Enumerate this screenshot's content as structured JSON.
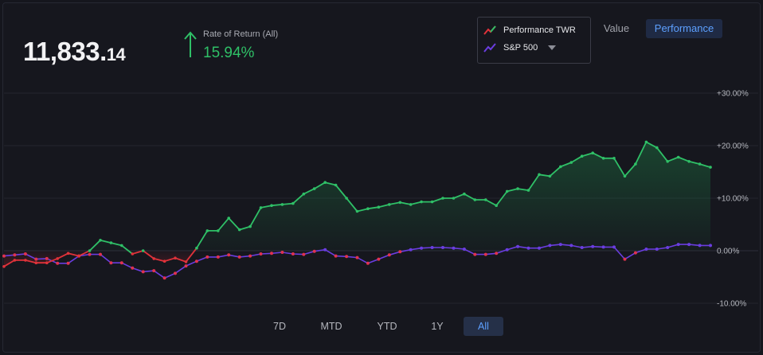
{
  "header": {
    "value_main": "11,833.",
    "value_cents": "14",
    "ror_label": "Rate of Return (All)",
    "ror_value": "15.94%"
  },
  "legend": {
    "items": [
      {
        "label": "Performance TWR",
        "color": "#e0323a"
      },
      {
        "label": "S&P 500",
        "color": "#6a3de0"
      }
    ]
  },
  "view_toggle": {
    "value_label": "Value",
    "performance_label": "Performance",
    "selected": "Performance"
  },
  "ranges": {
    "items": [
      "7D",
      "MTD",
      "YTD",
      "1Y",
      "All"
    ],
    "selected": "All"
  },
  "colors": {
    "positive": "#2fc067",
    "negative": "#e0323a",
    "benchmark": "#6a3de0",
    "benchmark_dot": "#e0324f"
  },
  "chart_data": {
    "type": "line",
    "ylim": [
      -10,
      30
    ],
    "y_ticks": [
      "+30.00%",
      "+20.00%",
      "+10.00%",
      "0.00%",
      "-10.00%"
    ],
    "y_tick_values": [
      30,
      20,
      10,
      0,
      -10
    ],
    "grid": true,
    "series": [
      {
        "name": "Performance TWR",
        "values": [
          -3.0,
          -1.8,
          -1.8,
          -2.3,
          -2.3,
          -1.5,
          -0.5,
          -1.0,
          0.0,
          2.0,
          1.5,
          1.0,
          -0.6,
          0.0,
          -1.5,
          -2.0,
          -1.4,
          -2.1,
          0.5,
          3.8,
          3.8,
          6.2,
          4.0,
          4.6,
          8.2,
          8.6,
          8.8,
          9.0,
          10.8,
          11.8,
          13.0,
          12.5,
          10.0,
          7.5,
          8.0,
          8.3,
          8.8,
          9.2,
          8.8,
          9.3,
          9.3,
          10.0,
          10.0,
          10.8,
          9.7,
          9.7,
          8.6,
          11.3,
          11.8,
          11.5,
          14.5,
          14.2,
          16.0,
          16.8,
          18.0,
          18.6,
          17.6,
          17.6,
          14.2,
          16.5,
          20.7,
          19.6,
          17.0,
          17.8,
          17.0,
          16.5,
          15.9
        ]
      },
      {
        "name": "S&P 500",
        "values": [
          -1.0,
          -0.8,
          -0.6,
          -1.6,
          -1.5,
          -2.4,
          -2.4,
          -1.0,
          -0.7,
          -0.7,
          -2.3,
          -2.3,
          -3.3,
          -4.0,
          -3.8,
          -5.2,
          -4.3,
          -2.9,
          -2.0,
          -1.2,
          -1.2,
          -0.8,
          -1.2,
          -1.0,
          -0.6,
          -0.5,
          -0.3,
          -0.6,
          -0.7,
          -0.1,
          0.2,
          -1.0,
          -1.1,
          -1.3,
          -2.4,
          -1.6,
          -0.8,
          -0.2,
          0.2,
          0.5,
          0.6,
          0.6,
          0.5,
          0.3,
          -0.7,
          -0.7,
          -0.5,
          0.2,
          0.8,
          0.5,
          0.5,
          1.0,
          1.2,
          1.0,
          0.6,
          0.8,
          0.7,
          0.7,
          -1.6,
          -0.4,
          0.3,
          0.3,
          0.6,
          1.2,
          1.2,
          1.0,
          1.0
        ]
      }
    ]
  }
}
